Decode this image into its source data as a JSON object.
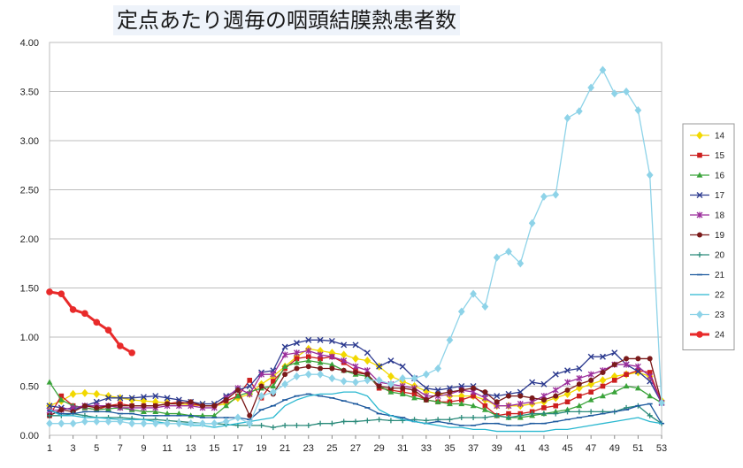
{
  "chart_data": {
    "type": "line",
    "title": "定点あたり週毎の咽頭結膜熱患者数",
    "xlabel": "",
    "ylabel": "",
    "xlim": [
      1,
      53
    ],
    "ylim": [
      0,
      4
    ],
    "x_tick_labels": [
      "1",
      "3",
      "5",
      "7",
      "9",
      "11",
      "13",
      "15",
      "17",
      "19",
      "21",
      "23",
      "25",
      "27",
      "29",
      "31",
      "33",
      "35",
      "37",
      "39",
      "41",
      "43",
      "45",
      "47",
      "49",
      "51",
      "53"
    ],
    "y_tick_labels": [
      "0.00",
      "0.50",
      "1.00",
      "1.50",
      "2.00",
      "2.50",
      "3.00",
      "3.50",
      "4.00"
    ],
    "grid": "horizontal",
    "legend": "right",
    "series": [
      {
        "name": "14",
        "color": "#f2d800",
        "marker": "diamond",
        "values": [
          0.3,
          0.35,
          0.42,
          0.43,
          0.42,
          0.4,
          0.38,
          0.36,
          0.35,
          0.34,
          0.33,
          0.32,
          0.31,
          0.3,
          0.3,
          0.32,
          0.38,
          0.42,
          0.52,
          0.6,
          0.7,
          0.8,
          0.88,
          0.86,
          0.84,
          0.82,
          0.78,
          0.76,
          0.7,
          0.6,
          0.55,
          0.5,
          0.45,
          0.42,
          0.4,
          0.4,
          0.4,
          0.36,
          0.3,
          0.3,
          0.3,
          0.32,
          0.34,
          0.38,
          0.42,
          0.48,
          0.52,
          0.56,
          0.6,
          0.62,
          0.64,
          0.6,
          0.35
        ]
      },
      {
        "name": "15",
        "color": "#cc1f1f",
        "marker": "square",
        "values": [
          0.2,
          0.4,
          0.3,
          0.28,
          0.26,
          0.3,
          0.32,
          0.3,
          0.3,
          0.3,
          0.32,
          0.34,
          0.32,
          0.3,
          0.3,
          0.35,
          0.4,
          0.56,
          0.38,
          0.55,
          0.68,
          0.78,
          0.8,
          0.78,
          0.8,
          0.74,
          0.66,
          0.62,
          0.48,
          0.46,
          0.44,
          0.42,
          0.36,
          0.34,
          0.34,
          0.36,
          0.4,
          0.3,
          0.2,
          0.22,
          0.22,
          0.24,
          0.28,
          0.3,
          0.34,
          0.4,
          0.44,
          0.5,
          0.56,
          0.62,
          0.66,
          0.64,
          0.33
        ]
      },
      {
        "name": "16",
        "color": "#3aa33a",
        "marker": "triangle",
        "values": [
          0.54,
          0.36,
          0.3,
          0.28,
          0.26,
          0.27,
          0.28,
          0.26,
          0.24,
          0.24,
          0.22,
          0.22,
          0.2,
          0.2,
          0.2,
          0.3,
          0.4,
          0.44,
          0.48,
          0.5,
          0.7,
          0.74,
          0.76,
          0.74,
          0.72,
          0.66,
          0.62,
          0.6,
          0.5,
          0.44,
          0.42,
          0.38,
          0.36,
          0.34,
          0.32,
          0.32,
          0.3,
          0.26,
          0.2,
          0.18,
          0.18,
          0.2,
          0.22,
          0.24,
          0.26,
          0.3,
          0.36,
          0.4,
          0.44,
          0.5,
          0.48,
          0.4,
          0.33
        ]
      },
      {
        "name": "17",
        "color": "#2c3a8f",
        "marker": "x",
        "values": [
          0.3,
          0.28,
          0.26,
          0.3,
          0.34,
          0.38,
          0.38,
          0.38,
          0.39,
          0.4,
          0.38,
          0.36,
          0.34,
          0.32,
          0.32,
          0.4,
          0.46,
          0.5,
          0.64,
          0.66,
          0.9,
          0.94,
          0.97,
          0.97,
          0.96,
          0.92,
          0.92,
          0.84,
          0.7,
          0.76,
          0.7,
          0.58,
          0.48,
          0.46,
          0.48,
          0.5,
          0.5,
          0.42,
          0.4,
          0.42,
          0.44,
          0.54,
          0.52,
          0.62,
          0.66,
          0.68,
          0.8,
          0.8,
          0.84,
          0.72,
          0.65,
          0.55,
          0.33
        ]
      },
      {
        "name": "18",
        "color": "#9b2d9b",
        "marker": "asterisk",
        "values": [
          0.25,
          0.26,
          0.28,
          0.3,
          0.3,
          0.3,
          0.28,
          0.28,
          0.28,
          0.28,
          0.3,
          0.3,
          0.3,
          0.28,
          0.28,
          0.38,
          0.48,
          0.42,
          0.62,
          0.62,
          0.82,
          0.84,
          0.86,
          0.82,
          0.8,
          0.76,
          0.7,
          0.66,
          0.54,
          0.52,
          0.5,
          0.48,
          0.4,
          0.4,
          0.42,
          0.46,
          0.44,
          0.38,
          0.3,
          0.3,
          0.32,
          0.34,
          0.4,
          0.46,
          0.54,
          0.58,
          0.62,
          0.66,
          0.72,
          0.72,
          0.7,
          0.6,
          0.33
        ]
      },
      {
        "name": "19",
        "color": "#7a1a1a",
        "marker": "circle",
        "values": [
          0.2,
          0.26,
          0.24,
          0.3,
          0.28,
          0.3,
          0.3,
          0.3,
          0.3,
          0.3,
          0.32,
          0.32,
          0.34,
          0.3,
          0.3,
          0.36,
          0.46,
          0.2,
          0.5,
          0.42,
          0.62,
          0.68,
          0.7,
          0.68,
          0.68,
          0.66,
          0.64,
          0.62,
          0.5,
          0.48,
          0.48,
          0.46,
          0.36,
          0.42,
          0.44,
          0.46,
          0.48,
          0.44,
          0.34,
          0.4,
          0.4,
          0.38,
          0.36,
          0.4,
          0.46,
          0.52,
          0.56,
          0.64,
          0.72,
          0.78,
          0.78,
          0.78,
          0.33
        ]
      },
      {
        "name": "20",
        "color": "#2a8a7a",
        "marker": "plus",
        "values": [
          0.2,
          0.2,
          0.22,
          0.2,
          0.18,
          0.18,
          0.18,
          0.17,
          0.16,
          0.16,
          0.15,
          0.14,
          0.13,
          0.12,
          0.12,
          0.11,
          0.1,
          0.1,
          0.1,
          0.08,
          0.1,
          0.1,
          0.1,
          0.12,
          0.12,
          0.14,
          0.14,
          0.15,
          0.16,
          0.15,
          0.15,
          0.16,
          0.15,
          0.16,
          0.16,
          0.18,
          0.18,
          0.18,
          0.2,
          0.18,
          0.2,
          0.22,
          0.22,
          0.22,
          0.24,
          0.24,
          0.24,
          0.24,
          0.24,
          0.28,
          0.3,
          0.2,
          0.12
        ]
      },
      {
        "name": "21",
        "color": "#1e5a9e",
        "marker": "dash",
        "values": [
          0.25,
          0.22,
          0.22,
          0.24,
          0.24,
          0.24,
          0.22,
          0.22,
          0.2,
          0.2,
          0.2,
          0.2,
          0.2,
          0.18,
          0.18,
          0.18,
          0.18,
          0.16,
          0.26,
          0.3,
          0.36,
          0.4,
          0.42,
          0.4,
          0.38,
          0.35,
          0.32,
          0.28,
          0.22,
          0.2,
          0.18,
          0.14,
          0.12,
          0.14,
          0.12,
          0.1,
          0.1,
          0.12,
          0.12,
          0.1,
          0.1,
          0.12,
          0.12,
          0.14,
          0.16,
          0.18,
          0.2,
          0.22,
          0.24,
          0.26,
          0.3,
          0.32,
          0.12
        ]
      },
      {
        "name": "22",
        "color": "#2bb8d0",
        "marker": "none",
        "values": [
          0.26,
          0.2,
          0.2,
          0.18,
          0.18,
          0.17,
          0.16,
          0.16,
          0.16,
          0.14,
          0.12,
          0.12,
          0.1,
          0.1,
          0.08,
          0.1,
          0.12,
          0.14,
          0.16,
          0.18,
          0.3,
          0.36,
          0.4,
          0.42,
          0.42,
          0.44,
          0.44,
          0.4,
          0.26,
          0.2,
          0.16,
          0.14,
          0.12,
          0.1,
          0.08,
          0.08,
          0.06,
          0.06,
          0.04,
          0.04,
          0.04,
          0.04,
          0.04,
          0.06,
          0.06,
          0.08,
          0.1,
          0.12,
          0.14,
          0.16,
          0.18,
          0.14,
          0.12
        ]
      },
      {
        "name": "23",
        "color": "#8ed3e8",
        "marker": "diamond",
        "values": [
          0.12,
          0.12,
          0.12,
          0.14,
          0.14,
          0.14,
          0.14,
          0.12,
          0.12,
          0.12,
          0.12,
          0.12,
          0.12,
          0.12,
          0.12,
          0.14,
          0.18,
          0.12,
          0.4,
          0.44,
          0.52,
          0.6,
          0.62,
          0.62,
          0.58,
          0.55,
          0.54,
          0.56,
          0.56,
          0.52,
          0.58,
          0.58,
          0.62,
          0.68,
          0.97,
          1.26,
          1.44,
          1.31,
          1.81,
          1.87,
          1.75,
          2.16,
          2.43,
          2.45,
          3.23,
          3.3,
          3.54,
          3.72,
          3.48,
          3.5,
          3.31,
          2.65,
          0.33
        ]
      },
      {
        "name": "24",
        "color": "#e82a2a",
        "marker": "circle-bold",
        "values": [
          1.46,
          1.44,
          1.28,
          1.24,
          1.15,
          1.07,
          0.91,
          0.84
        ]
      }
    ]
  }
}
